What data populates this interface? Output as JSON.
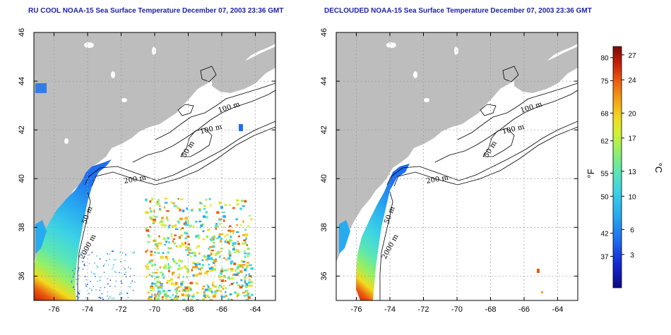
{
  "titles": {
    "left": "RU COOL NOAA-15 Sea Surface Temperature December 07, 2003 23:36 GMT",
    "right": "DECLOUDED NOAA-15 Sea Surface Temperature December 07, 2003 23:36 GMT"
  },
  "map": {
    "lon_range": [
      -77.2,
      -62.8
    ],
    "lat_range": [
      35.0,
      46.0
    ],
    "lon_ticks": [
      -76,
      -74,
      -72,
      -70,
      -68,
      -66,
      -64
    ],
    "lat_ticks": [
      36,
      38,
      40,
      42,
      44,
      46
    ],
    "lon_tick_labels": [
      "-76",
      "-74",
      "-72",
      "-70",
      "-68",
      "-66",
      "-64"
    ],
    "lat_tick_labels": [
      "36",
      "38",
      "40",
      "42",
      "44",
      "46"
    ],
    "grid": true,
    "land_color": "#bdbdbd",
    "ocean_color": "#ffffff",
    "contour_labels": [
      "100 m",
      "100 m",
      "50 m",
      "200 m",
      "50 m",
      "2000 m"
    ]
  },
  "colorbar": {
    "fahrenheit_labels": [
      "80",
      "75",
      "68",
      "62",
      "55",
      "50",
      "42",
      "37"
    ],
    "fahrenheit_values": [
      80,
      75,
      68,
      62,
      55,
      50,
      42,
      37
    ],
    "celsius_labels": [
      "27",
      "24",
      "20",
      "17",
      "13",
      "10",
      "6",
      "3"
    ],
    "celsius_values": [
      27,
      24,
      20,
      17,
      13,
      10,
      6,
      3
    ],
    "fahrenheit_unit": "°F",
    "celsius_unit": "°C",
    "range_c": [
      -1,
      28
    ],
    "colors": [
      "#0b0b8a",
      "#1428d6",
      "#1e6ef0",
      "#28aaf0",
      "#3cd2e6",
      "#5ae6b4",
      "#96f064",
      "#d2f032",
      "#f0dc1e",
      "#f5a014",
      "#eb5a0f",
      "#c81e0a",
      "#7a0a05"
    ]
  }
}
